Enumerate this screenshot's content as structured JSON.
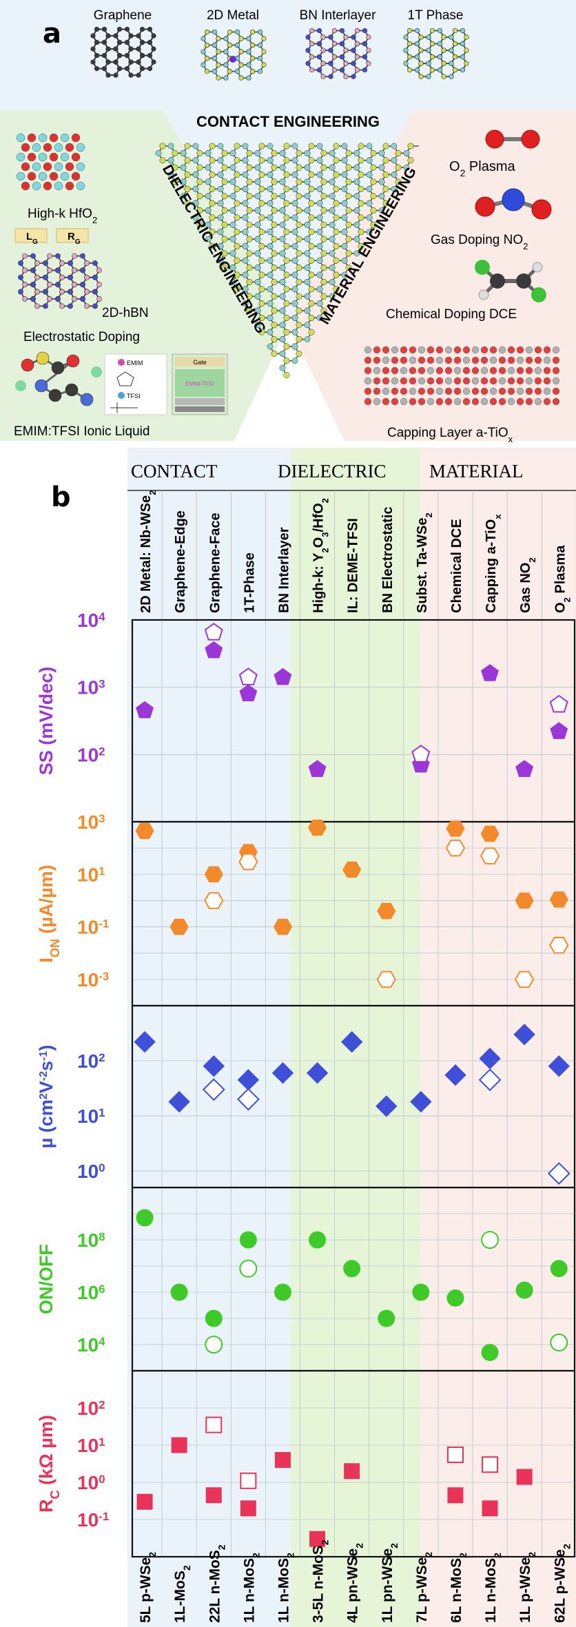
{
  "panel_a": {
    "letter": "a",
    "top_labels": [
      "Graphene",
      "2D Metal",
      "BN Interlayer",
      "1T Phase"
    ],
    "center_titles": {
      "contact": "CONTACT ENGINEERING",
      "dielectric": "DIELECTRIC ENGINEERING",
      "material": "MATERIAL ENGINEERING"
    },
    "left_labels": {
      "hfo2_main": "High-k HfO",
      "hfo2_sub": "2",
      "lg": "L",
      "lg_sub": "G",
      "rg": "R",
      "rg_sub": "G",
      "hbn": "2D-hBN",
      "electrostatic": "Electrostatic Doping",
      "ionic": "EMIM:TFSI Ionic Liquid",
      "emim_small": "EMIM",
      "tfsi_small": "TFSI",
      "gate_small": "Gate",
      "emim_tfsi_small": "EMIM-TFSI"
    },
    "right_labels": {
      "o2_main": "O",
      "o2_sub": "2",
      "o2_rest": " Plasma",
      "no2_main": "Gas Doping NO",
      "no2_sub": "2",
      "dce": "Chemical Doping DCE",
      "tiox_main": "Capping Layer a-TiO",
      "tiox_sub": "x"
    }
  },
  "panel_b": {
    "letter": "b",
    "groups": [
      "CONTACT",
      "DIELECTRIC",
      "MATERIAL"
    ],
    "columns": [
      {
        "top": [
          "2D Metal: Nb-WSe",
          "2",
          ""
        ],
        "bottom": [
          "5L p-WSe",
          "2"
        ]
      },
      {
        "top": [
          "Graphene-Edge",
          "",
          ""
        ],
        "bottom": [
          "1L-MoS",
          "2"
        ]
      },
      {
        "top": [
          "Graphene-Face",
          "",
          ""
        ],
        "bottom": [
          "22L n-MoS",
          "2"
        ]
      },
      {
        "top": [
          "1T-Phase",
          "",
          ""
        ],
        "bottom": [
          "1L n-MoS",
          "2"
        ]
      },
      {
        "top": [
          "BN Interlayer",
          "",
          ""
        ],
        "bottom": [
          "1L n-MoS",
          "2"
        ]
      },
      {
        "top": [
          "High-k: Y",
          "2",
          "O",
          "3",
          "/HfO",
          "2"
        ],
        "bottom": [
          "3-5L n-MoS",
          "2"
        ]
      },
      {
        "top": [
          "IL: DEME-TFSI",
          "",
          ""
        ],
        "bottom": [
          "4L pn-WSe",
          "2"
        ]
      },
      {
        "top": [
          "BN Electrostatic",
          "",
          ""
        ],
        "bottom": [
          "1L pn-WSe",
          "2"
        ]
      },
      {
        "top": [
          "Subst. Ta-WSe",
          "2",
          ""
        ],
        "bottom": [
          "7L p-WSe",
          "2"
        ]
      },
      {
        "top": [
          "Chemical DCE",
          "",
          ""
        ],
        "bottom": [
          "6L n-MoS",
          "2"
        ]
      },
      {
        "top": [
          "Capping a-TiO",
          "x",
          ""
        ],
        "bottom": [
          "1L n-MoS",
          "2"
        ]
      },
      {
        "top": [
          "Gas NO",
          "2",
          ""
        ],
        "bottom": [
          "1L p-WSe",
          "2"
        ]
      },
      {
        "top": [
          "O",
          "2",
          " Plasma"
        ],
        "bottom": [
          "62L p-WSe",
          "2"
        ]
      }
    ]
  },
  "colors": {
    "contact_bg": "#eaf3fa",
    "dielectric_bg": "#e6f5d8",
    "material_bg": "#fbeeea",
    "ss": "#9a37d6",
    "ion": "#f28a2c",
    "mu": "#3f4fd8",
    "onoff": "#3fca2a",
    "rc": "#ea3358"
  },
  "chart_data": {
    "type": "scatter",
    "x_categories": [
      "5L p-WSe2",
      "1L-MoS2",
      "22L n-MoS2",
      "1L n-MoS2",
      "1L n-MoS2",
      "3-5L n-MoS2",
      "4L pn-WSe2",
      "1L pn-WSe2",
      "7L p-WSe2",
      "6L n-MoS2",
      "1L n-MoS2",
      "1L p-WSe2",
      "62L p-WSe2"
    ],
    "log_scale": true,
    "subplots": [
      {
        "name": "SS",
        "ylabel_main": "SS (mV/dec)",
        "ylim": [
          10,
          10000
        ],
        "ticks": [
          {
            "b": "10",
            "e": "4",
            "v": 4
          },
          {
            "b": "10",
            "e": "3",
            "v": 3
          },
          {
            "b": "10",
            "e": "2",
            "v": 2
          }
        ],
        "marker": "pentagon",
        "filled": [
          [
            0,
            450
          ],
          [
            2,
            3500
          ],
          [
            3,
            800
          ],
          [
            4,
            1400
          ],
          [
            5,
            60
          ],
          [
            8,
            70
          ],
          [
            10,
            1600
          ],
          [
            11,
            60
          ],
          [
            12,
            220
          ]
        ],
        "open": [
          [
            2,
            6500
          ],
          [
            3,
            1400
          ],
          [
            8,
            100
          ],
          [
            12,
            550
          ]
        ]
      },
      {
        "name": "ION",
        "ylabel_main": "I",
        "ylabel_sub": "ON",
        "ylabel_rest": " (µA/µm)",
        "ylim": [
          0.0001,
          1000
        ],
        "ticks": [
          {
            "b": "10",
            "e": "3",
            "v": 3
          },
          {
            "b": "10",
            "e": "1",
            "v": 1
          },
          {
            "b": "10",
            "e": "-1",
            "v": -1
          },
          {
            "b": "10",
            "e": "-3",
            "v": -3
          }
        ],
        "marker": "hexagon",
        "filled": [
          [
            0,
            450
          ],
          [
            1,
            0.1
          ],
          [
            2,
            10
          ],
          [
            3,
            70
          ],
          [
            4,
            0.1
          ],
          [
            5,
            600
          ],
          [
            6,
            15
          ],
          [
            7,
            0.4
          ],
          [
            9,
            550
          ],
          [
            10,
            350
          ],
          [
            11,
            1.0
          ],
          [
            12,
            1.1
          ]
        ],
        "open": [
          [
            2,
            1.0
          ],
          [
            3,
            30
          ],
          [
            7,
            0.001
          ],
          [
            9,
            100
          ],
          [
            10,
            50
          ],
          [
            11,
            0.001
          ],
          [
            12,
            0.02
          ]
        ]
      },
      {
        "name": "mu",
        "ylabel_main": "µ (cm",
        "ylim": [
          0.5,
          1000
        ],
        "ticks": [
          {
            "b": "10",
            "e": "2",
            "v": 2
          },
          {
            "b": "10",
            "e": "1",
            "v": 1
          },
          {
            "b": "10",
            "e": "0",
            "v": 0
          }
        ],
        "marker": "diamond",
        "filled": [
          [
            0,
            220
          ],
          [
            1,
            18
          ],
          [
            2,
            80
          ],
          [
            3,
            45
          ],
          [
            4,
            60
          ],
          [
            5,
            60
          ],
          [
            6,
            220
          ],
          [
            7,
            15
          ],
          [
            8,
            18
          ],
          [
            9,
            55
          ],
          [
            10,
            110
          ],
          [
            11,
            300
          ],
          [
            12,
            80
          ]
        ],
        "open": [
          [
            2,
            30
          ],
          [
            3,
            20
          ],
          [
            10,
            45
          ],
          [
            12,
            0.9
          ]
        ]
      },
      {
        "name": "ON/OFF",
        "ylabel_main": "ON/OFF",
        "ylim": [
          1000,
          10000000000
        ],
        "ticks": [
          {
            "b": "10",
            "e": "8",
            "v": 8
          },
          {
            "b": "10",
            "e": "6",
            "v": 6
          },
          {
            "b": "10",
            "e": "4",
            "v": 4
          }
        ],
        "marker": "circle",
        "filled": [
          [
            0,
            700000000
          ],
          [
            1,
            1000000
          ],
          [
            2,
            100000
          ],
          [
            3,
            100000000
          ],
          [
            4,
            1000000
          ],
          [
            5,
            100000000
          ],
          [
            6,
            8000000
          ],
          [
            7,
            100000
          ],
          [
            8,
            1000000
          ],
          [
            9,
            600000
          ],
          [
            10,
            5000
          ],
          [
            11,
            1200000
          ],
          [
            12,
            8000000
          ]
        ],
        "open": [
          [
            2,
            10000
          ],
          [
            3,
            8000000
          ],
          [
            10,
            100000000
          ],
          [
            12,
            12000
          ]
        ]
      },
      {
        "name": "RC",
        "ylabel_main": "R",
        "ylabel_sub": "C",
        "ylabel_rest": " (kΩ µm)",
        "ylim": [
          0.01,
          1000
        ],
        "ticks": [
          {
            "b": "10",
            "e": "2",
            "v": 2
          },
          {
            "b": "10",
            "e": "1",
            "v": 1
          },
          {
            "b": "10",
            "e": "0",
            "v": 0
          },
          {
            "b": "10",
            "e": "-1",
            "v": -1
          }
        ],
        "marker": "square",
        "filled": [
          [
            0,
            0.3
          ],
          [
            1,
            10
          ],
          [
            2,
            0.45
          ],
          [
            3,
            0.2
          ],
          [
            4,
            4
          ],
          [
            5,
            0.03
          ],
          [
            6,
            2
          ],
          [
            9,
            0.45
          ],
          [
            10,
            0.2
          ],
          [
            11,
            1.4
          ]
        ],
        "open": [
          [
            2,
            35
          ],
          [
            3,
            1.1
          ],
          [
            9,
            5.5
          ],
          [
            10,
            3
          ]
        ]
      }
    ]
  }
}
